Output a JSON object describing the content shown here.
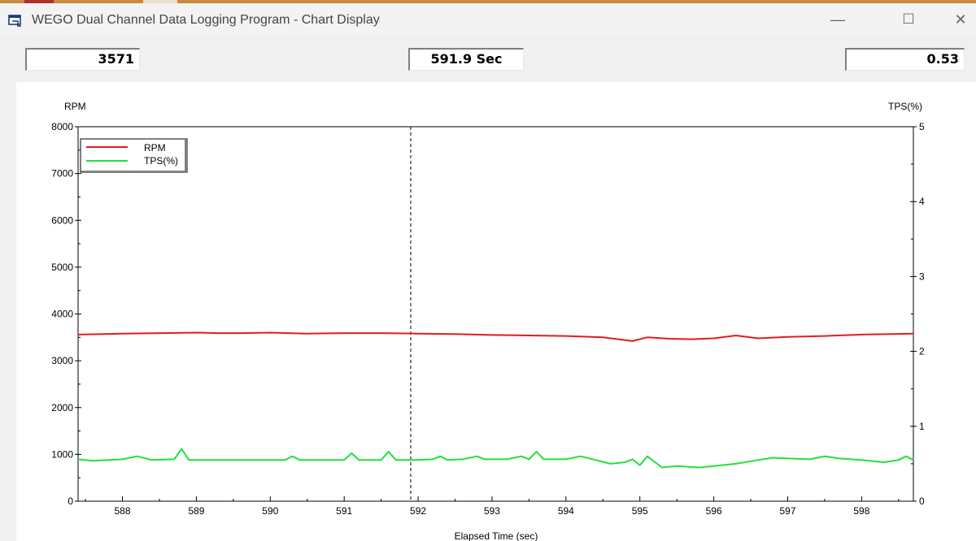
{
  "window": {
    "title": "WEGO Dual Channel Data Logging Program - Chart Display",
    "controls": {
      "minimize": "—",
      "maximize": "☐",
      "close": "✕"
    }
  },
  "readouts": {
    "rpm_value": "3571",
    "time_value": "591.9 Sec",
    "tps_value": "0.53"
  },
  "chart_data": {
    "type": "line",
    "xlabel": "Elapsed Time (sec)",
    "ylabel_left": "RPM",
    "ylabel_right": "TPS(%)",
    "xlim": [
      587.4,
      598.7
    ],
    "ylim_left": [
      0,
      8000
    ],
    "ylim_right": [
      0,
      5
    ],
    "x_ticks": [
      588,
      589,
      590,
      591,
      592,
      593,
      594,
      595,
      596,
      597,
      598
    ],
    "y_left_ticks": [
      0,
      1000,
      2000,
      3000,
      4000,
      5000,
      6000,
      7000,
      8000
    ],
    "y_right_ticks": [
      0,
      1,
      2,
      3,
      4,
      5
    ],
    "cursor_x": 591.9,
    "legend": {
      "placement": "top-left",
      "entries": [
        "RPM",
        "TPS(%)"
      ]
    },
    "grid": false,
    "series": [
      {
        "name": "RPM",
        "axis": "left",
        "color": "#e41a1c",
        "x": [
          587.4,
          588.0,
          588.5,
          589.0,
          589.3,
          589.6,
          590.0,
          590.5,
          591.0,
          591.5,
          592.0,
          592.5,
          593.0,
          593.5,
          594.0,
          594.5,
          594.9,
          595.1,
          595.4,
          595.7,
          596.0,
          596.3,
          596.6,
          597.0,
          597.5,
          598.0,
          598.7
        ],
        "y": [
          3560,
          3580,
          3590,
          3600,
          3590,
          3590,
          3600,
          3580,
          3590,
          3590,
          3580,
          3570,
          3550,
          3540,
          3530,
          3500,
          3420,
          3500,
          3470,
          3460,
          3480,
          3540,
          3480,
          3510,
          3530,
          3560,
          3580
        ]
      },
      {
        "name": "TPS(%)",
        "axis": "right",
        "color": "#22e03a",
        "x": [
          587.4,
          587.6,
          588.0,
          588.2,
          588.4,
          588.7,
          588.8,
          588.9,
          589.2,
          589.6,
          590.0,
          590.2,
          590.3,
          590.4,
          590.8,
          591.0,
          591.1,
          591.2,
          591.4,
          591.5,
          591.6,
          591.7,
          592.0,
          592.2,
          592.3,
          592.4,
          592.6,
          592.8,
          592.9,
          593.2,
          593.4,
          593.5,
          593.6,
          593.7,
          593.8,
          594.0,
          594.2,
          594.4,
          594.6,
          594.8,
          594.9,
          595.0,
          595.1,
          595.3,
          595.5,
          595.8,
          596.0,
          596.3,
          596.6,
          596.8,
          597.0,
          597.3,
          597.5,
          597.7,
          598.0,
          598.3,
          598.5,
          598.6,
          598.7
        ],
        "y": [
          0.56,
          0.54,
          0.56,
          0.6,
          0.55,
          0.56,
          0.7,
          0.55,
          0.55,
          0.55,
          0.55,
          0.55,
          0.6,
          0.55,
          0.55,
          0.55,
          0.64,
          0.55,
          0.55,
          0.55,
          0.66,
          0.55,
          0.55,
          0.56,
          0.6,
          0.55,
          0.56,
          0.6,
          0.56,
          0.56,
          0.6,
          0.56,
          0.66,
          0.56,
          0.56,
          0.56,
          0.6,
          0.55,
          0.5,
          0.52,
          0.56,
          0.48,
          0.6,
          0.45,
          0.47,
          0.45,
          0.47,
          0.5,
          0.55,
          0.58,
          0.57,
          0.56,
          0.6,
          0.57,
          0.55,
          0.52,
          0.55,
          0.6,
          0.55
        ]
      }
    ]
  }
}
